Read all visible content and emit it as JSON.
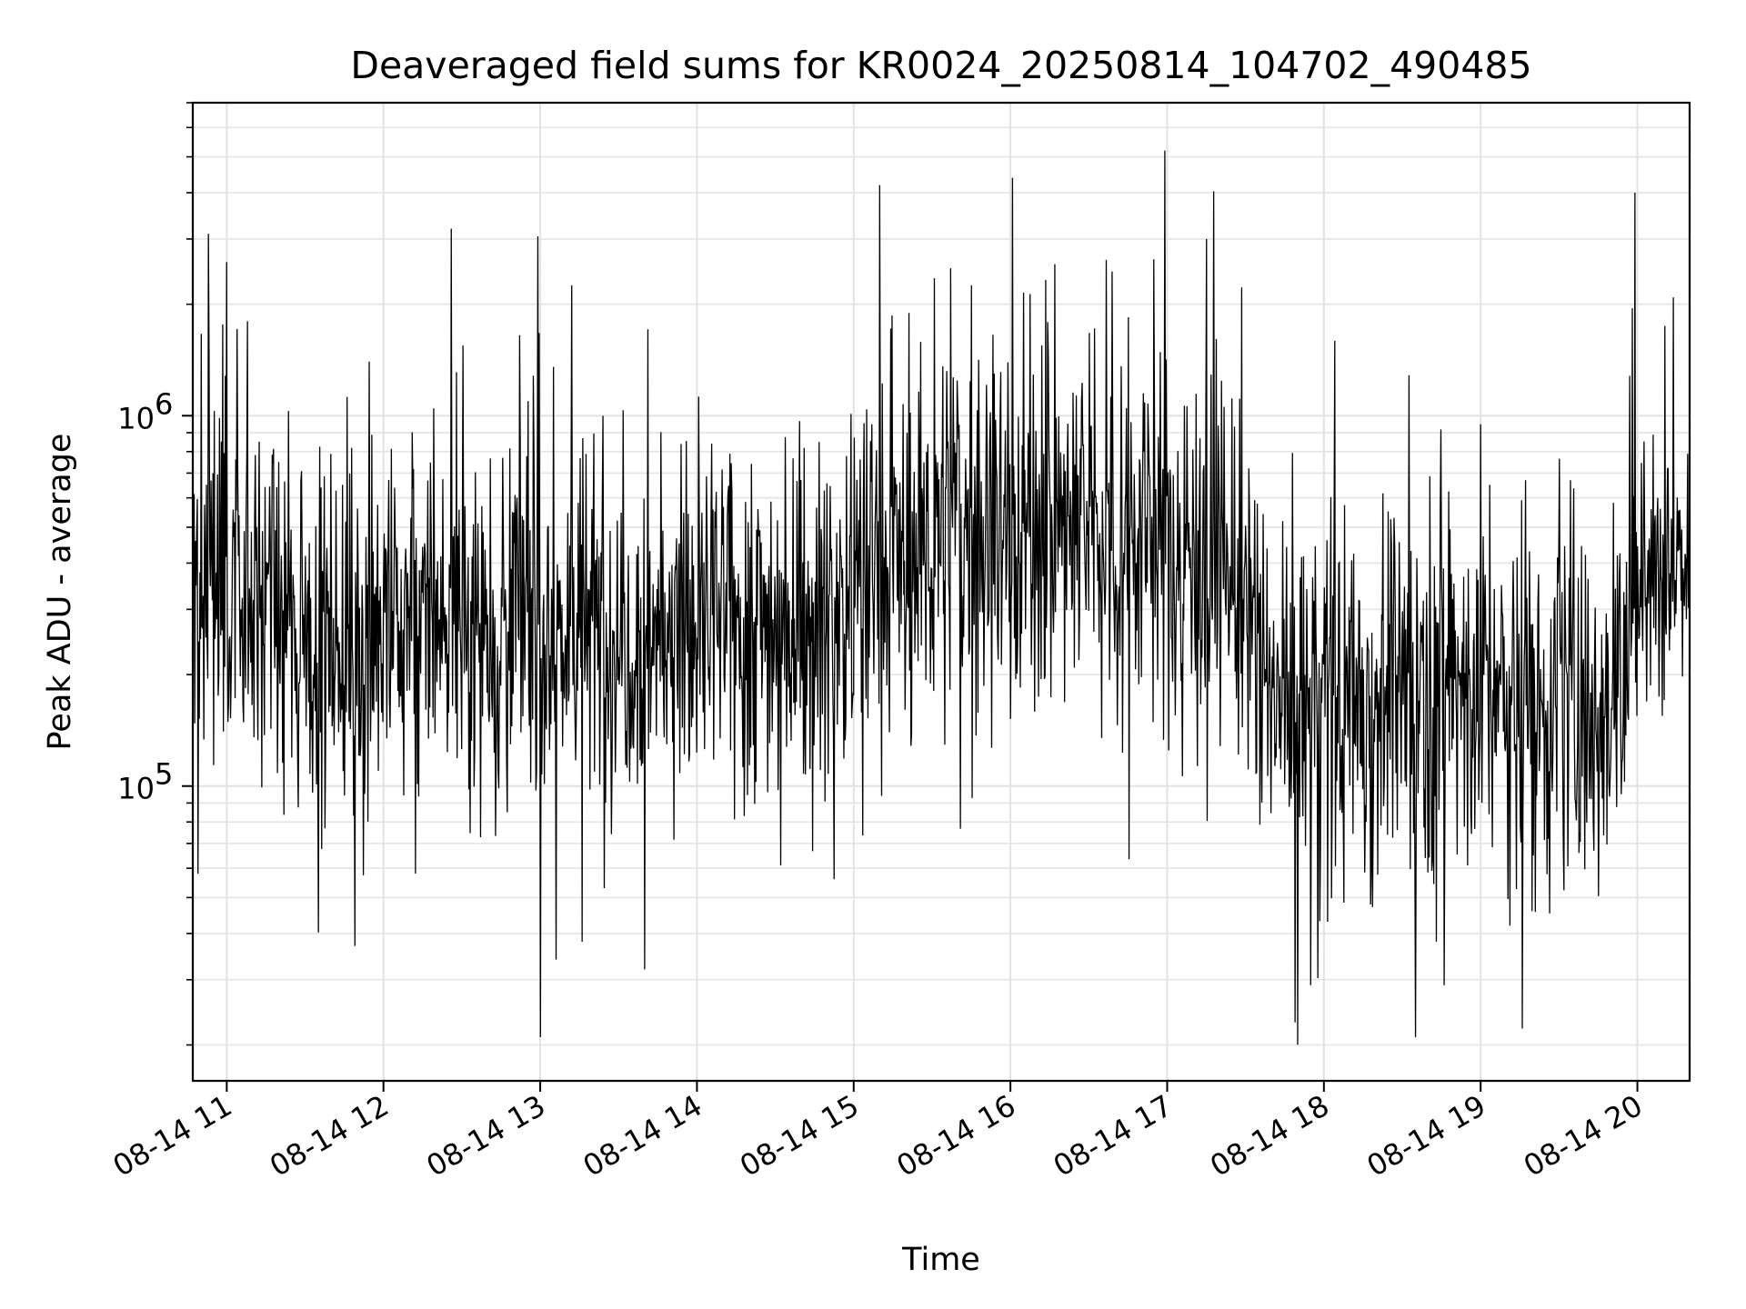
{
  "chart_data": {
    "type": "line",
    "title": "Deaveraged field sums for KR0024_20250814_104702_490485",
    "xlabel": "Time",
    "ylabel": "Peak ADU - average",
    "yscale": "log",
    "ylim": [
      16000,
      7000000
    ],
    "xlim": [
      "2025-08-14 10:47",
      "2025-08-14 20:20"
    ],
    "x_tick_labels": [
      "08-14 11",
      "08-14 12",
      "08-14 13",
      "08-14 14",
      "08-14 15",
      "08-14 16",
      "08-14 17",
      "08-14 18",
      "08-14 19",
      "08-14 20"
    ],
    "x_ticks": [
      "2025-08-14 11:00",
      "2025-08-14 12:00",
      "2025-08-14 13:00",
      "2025-08-14 14:00",
      "2025-08-14 15:00",
      "2025-08-14 16:00",
      "2025-08-14 17:00",
      "2025-08-14 18:00",
      "2025-08-14 19:00",
      "2025-08-14 20:00"
    ],
    "y_ticks": [
      {
        "value": 100000,
        "base": "10",
        "exp": "5"
      },
      {
        "value": 1000000,
        "base": "10",
        "exp": "6"
      }
    ],
    "grid": true,
    "series": [
      {
        "color": "#000000",
        "segments": [
          {
            "start": "2025-08-14 10:47",
            "end": "2025-08-14 11:15",
            "level": 380000,
            "spread": 0.55
          },
          {
            "start": "2025-08-14 11:15",
            "end": "2025-08-14 12:00",
            "level": 250000,
            "spread": 0.55
          },
          {
            "start": "2025-08-14 12:00",
            "end": "2025-08-14 13:00",
            "level": 280000,
            "spread": 0.55
          },
          {
            "start": "2025-08-14 13:00",
            "end": "2025-08-14 14:00",
            "level": 260000,
            "spread": 0.55
          },
          {
            "start": "2025-08-14 14:00",
            "end": "2025-08-14 15:00",
            "level": 280000,
            "spread": 0.55
          },
          {
            "start": "2025-08-14 15:00",
            "end": "2025-08-14 15:30",
            "level": 400000,
            "spread": 0.6
          },
          {
            "start": "2025-08-14 15:30",
            "end": "2025-08-14 16:50",
            "level": 500000,
            "spread": 0.6
          },
          {
            "start": "2025-08-14 16:50",
            "end": "2025-08-14 17:30",
            "level": 450000,
            "spread": 0.6
          },
          {
            "start": "2025-08-14 17:30",
            "end": "2025-08-14 18:30",
            "level": 170000,
            "spread": 0.6
          },
          {
            "start": "2025-08-14 18:30",
            "end": "2025-08-14 19:00",
            "level": 200000,
            "spread": 0.6
          },
          {
            "start": "2025-08-14 19:00",
            "end": "2025-08-14 19:58",
            "level": 170000,
            "spread": 0.6
          },
          {
            "start": "2025-08-14 19:58",
            "end": "2025-08-14 20:20",
            "level": 430000,
            "spread": 0.45
          }
        ],
        "peaks": [
          {
            "x": "2025-08-14 10:53",
            "y": 3100000
          },
          {
            "x": "2025-08-14 11:00",
            "y": 2600000
          },
          {
            "x": "2025-08-14 11:08",
            "y": 1800000
          },
          {
            "x": "2025-08-14 12:26",
            "y": 3200000
          },
          {
            "x": "2025-08-14 12:52",
            "y": 1650000
          },
          {
            "x": "2025-08-14 12:59",
            "y": 3050000
          },
          {
            "x": "2025-08-14 13:12",
            "y": 2250000
          },
          {
            "x": "2025-08-14 15:31",
            "y": 2350000
          },
          {
            "x": "2025-08-14 15:37",
            "y": 2500000
          },
          {
            "x": "2025-08-14 15:45",
            "y": 2250000
          },
          {
            "x": "2025-08-14 16:05",
            "y": 2150000
          },
          {
            "x": "2025-08-14 16:39",
            "y": 2450000
          },
          {
            "x": "2025-08-14 16:59",
            "y": 5200000
          },
          {
            "x": "2025-08-14 17:15",
            "y": 3000000
          },
          {
            "x": "2025-08-14 19:58",
            "y": 1950000
          },
          {
            "x": "2025-08-14 19:59",
            "y": 4000000
          }
        ],
        "troughs": [
          {
            "x": "2025-08-14 10:49",
            "y": 58000
          },
          {
            "x": "2025-08-14 11:49",
            "y": 37000
          },
          {
            "x": "2025-08-14 13:00",
            "y": 21000
          },
          {
            "x": "2025-08-14 13:06",
            "y": 34000
          },
          {
            "x": "2025-08-14 13:16",
            "y": 38000
          },
          {
            "x": "2025-08-14 13:40",
            "y": 32000
          },
          {
            "x": "2025-08-14 17:49",
            "y": 23000
          },
          {
            "x": "2025-08-14 17:55",
            "y": 29000
          },
          {
            "x": "2025-08-14 18:35",
            "y": 21000
          },
          {
            "x": "2025-08-14 18:46",
            "y": 29000
          },
          {
            "x": "2025-08-14 18:43",
            "y": 38000
          }
        ]
      }
    ]
  }
}
